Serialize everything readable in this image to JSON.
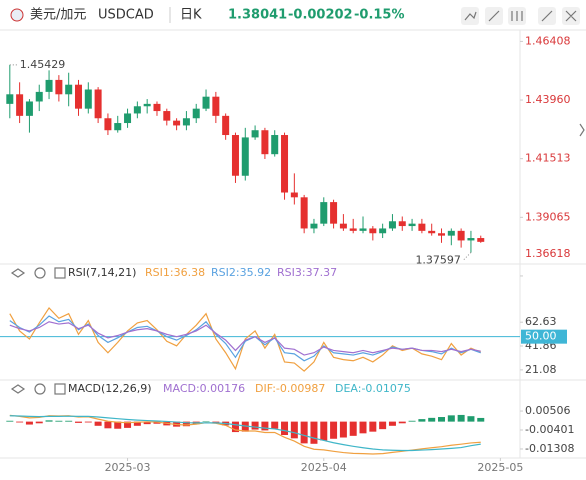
{
  "header": {
    "pair": "美元/加元",
    "symbol": "USDCAD",
    "period": "日K",
    "price": "1.38041",
    "change": "-0.00202",
    "change_pct": "-0.15%"
  },
  "chart_data": [
    {
      "type": "candlestick",
      "up_color": "#1f9c6e",
      "down_color": "#e5302f",
      "label_color": "#d9383a",
      "x": [
        0,
        1,
        2,
        3,
        4,
        5,
        6,
        7,
        8,
        9,
        10,
        11,
        12,
        13,
        14,
        15,
        16,
        17,
        18,
        19,
        20,
        21,
        22,
        23,
        24,
        25,
        26,
        27,
        28,
        29,
        30,
        31,
        32,
        33,
        34,
        35,
        36,
        37,
        38,
        39,
        40,
        41,
        42,
        43,
        44,
        45,
        46,
        47,
        48
      ],
      "open": [
        1.438,
        1.442,
        1.433,
        1.439,
        1.443,
        1.448,
        1.442,
        1.446,
        1.436,
        1.444,
        1.432,
        1.427,
        1.43,
        1.434,
        1.437,
        1.438,
        1.435,
        1.431,
        1.429,
        1.432,
        1.436,
        1.441,
        1.433,
        1.425,
        1.408,
        1.424,
        1.427,
        1.417,
        1.425,
        1.401,
        1.399,
        1.386,
        1.388,
        1.397,
        1.388,
        1.386,
        1.385,
        1.386,
        1.384,
        1.386,
        1.389,
        1.387,
        1.388,
        1.385,
        1.384,
        1.383,
        1.385,
        1.381,
        1.382
      ],
      "high": [
        1.45429,
        1.447,
        1.44,
        1.446,
        1.452,
        1.45,
        1.451,
        1.448,
        1.447,
        1.445,
        1.434,
        1.433,
        1.436,
        1.439,
        1.44,
        1.439,
        1.436,
        1.432,
        1.435,
        1.438,
        1.444,
        1.443,
        1.434,
        1.426,
        1.428,
        1.429,
        1.428,
        1.427,
        1.426,
        1.409,
        1.4,
        1.39,
        1.399,
        1.398,
        1.392,
        1.39,
        1.391,
        1.387,
        1.388,
        1.392,
        1.391,
        1.39,
        1.39,
        1.388,
        1.386,
        1.386,
        1.386,
        1.385,
        1.383
      ],
      "low": [
        1.432,
        1.43,
        1.426,
        1.435,
        1.44,
        1.439,
        1.437,
        1.433,
        1.434,
        1.43,
        1.425,
        1.426,
        1.428,
        1.432,
        1.434,
        1.433,
        1.429,
        1.427,
        1.427,
        1.43,
        1.435,
        1.43,
        1.423,
        1.405,
        1.406,
        1.423,
        1.415,
        1.416,
        1.398,
        1.396,
        1.384,
        1.384,
        1.387,
        1.386,
        1.385,
        1.384,
        1.384,
        1.381,
        1.382,
        1.385,
        1.385,
        1.385,
        1.384,
        1.383,
        1.38,
        1.379,
        1.378,
        1.37597,
        1.38
      ],
      "close": [
        1.442,
        1.433,
        1.439,
        1.443,
        1.448,
        1.442,
        1.446,
        1.436,
        1.444,
        1.432,
        1.427,
        1.43,
        1.434,
        1.437,
        1.438,
        1.435,
        1.431,
        1.429,
        1.432,
        1.436,
        1.441,
        1.433,
        1.425,
        1.408,
        1.424,
        1.427,
        1.417,
        1.425,
        1.401,
        1.399,
        1.386,
        1.388,
        1.397,
        1.388,
        1.386,
        1.385,
        1.386,
        1.384,
        1.386,
        1.389,
        1.387,
        1.388,
        1.385,
        1.384,
        1.383,
        1.385,
        1.381,
        1.382,
        1.38041
      ],
      "xlim": [
        -1,
        52
      ],
      "ylim": [
        1.372,
        1.468
      ],
      "yticks": [
        1.36618,
        1.39065,
        1.41513,
        {
          "value": 1.4396,
          "label": "1.43960"
        },
        1.46408
      ],
      "xticks": [
        {
          "value": 12,
          "label": "2025-03"
        },
        {
          "value": 32,
          "label": "2025-04"
        },
        {
          "value": 50,
          "label": "2025-05"
        }
      ],
      "annotations": [
        {
          "x": 0,
          "value": 1.45429
        },
        {
          "x": 47,
          "value": 1.37597
        }
      ]
    },
    {
      "type": "line",
      "title": "RSI(7,14,21)",
      "ylim": [
        14,
        95
      ],
      "yticks": [
        21.08,
        41.86,
        {
          "value": 50,
          "label": "50.00",
          "color": "#3fb6d6"
        },
        62.63
      ],
      "series": [
        {
          "name": "RSI1:36.38",
          "color": "#f0a040",
          "values": [
            70,
            55,
            48,
            62,
            75,
            66,
            70,
            52,
            64,
            45,
            36,
            45,
            55,
            62,
            64,
            56,
            46,
            42,
            52,
            60,
            70,
            48,
            36,
            22,
            48,
            55,
            40,
            52,
            28,
            27,
            20,
            28,
            45,
            32,
            30,
            29,
            32,
            28,
            34,
            42,
            38,
            40,
            35,
            33,
            30,
            44,
            34,
            40,
            36.38
          ]
        },
        {
          "name": "RSI2:35.92",
          "color": "#5aa2e0",
          "values": [
            64,
            58,
            54,
            60,
            68,
            63,
            65,
            56,
            61,
            51,
            45,
            49,
            54,
            58,
            59,
            55,
            50,
            47,
            51,
            56,
            63,
            52,
            44,
            32,
            46,
            50,
            43,
            49,
            36,
            35,
            29,
            33,
            42,
            36,
            35,
            34,
            36,
            34,
            37,
            41,
            39,
            40,
            38,
            37,
            35,
            40,
            36,
            39,
            35.92
          ]
        },
        {
          "name": "RSI3:37.37",
          "color": "#a070d0",
          "values": [
            60,
            57,
            55,
            58,
            63,
            61,
            62,
            57,
            60,
            53,
            49,
            51,
            54,
            56,
            57,
            55,
            52,
            50,
            52,
            55,
            60,
            53,
            47,
            38,
            47,
            50,
            45,
            49,
            40,
            39,
            34,
            36,
            41,
            38,
            37,
            36,
            38,
            36,
            38,
            40,
            39,
            40,
            38,
            38,
            37,
            39,
            37,
            39,
            37.37
          ]
        }
      ]
    },
    {
      "type": "macd",
      "title": "MACD(12,26,9)",
      "ylim": [
        -0.0174,
        0.0113
      ],
      "yticks": [
        -0.01308,
        -0.00401,
        0.00506
      ],
      "up_color": "#1f9c6e",
      "down_color": "#e5302f",
      "series": [
        {
          "name": "MACD:0.00176",
          "color": "#a070d0",
          "kind": "bar",
          "values": [
            0.0004,
            -0.0004,
            -0.0014,
            -0.0008,
            0.0006,
            0.0004,
            0.0004,
            -0.0006,
            -0.0004,
            -0.002,
            -0.0032,
            -0.0034,
            -0.003,
            -0.002,
            -0.0012,
            -0.001,
            -0.0018,
            -0.0024,
            -0.0022,
            -0.0012,
            0.0002,
            -0.0004,
            -0.0018,
            -0.005,
            -0.0048,
            -0.0038,
            -0.0042,
            -0.0034,
            -0.0064,
            -0.008,
            -0.0104,
            -0.0106,
            -0.009,
            -0.0082,
            -0.0076,
            -0.0068,
            -0.0056,
            -0.0048,
            -0.0036,
            -0.002,
            -0.0008,
            0.0004,
            0.0012,
            0.0018,
            0.0022,
            0.003,
            0.0032,
            0.0026,
            0.00176
          ]
        },
        {
          "name": "DIF:-0.00987",
          "color": "#f0a040",
          "kind": "line",
          "values": [
            0.003,
            0.0025,
            0.0018,
            0.002,
            0.0028,
            0.0027,
            0.0028,
            0.0022,
            0.0023,
            0.0012,
            0.0002,
            -0.0003,
            -0.0005,
            -0.0003,
            -0.0001,
            -0.0002,
            -0.0008,
            -0.0014,
            -0.0016,
            -0.0012,
            -0.0005,
            -0.0008,
            -0.0018,
            -0.004,
            -0.0045,
            -0.0045,
            -0.0052,
            -0.0052,
            -0.0075,
            -0.0093,
            -0.0118,
            -0.0132,
            -0.0135,
            -0.0142,
            -0.0148,
            -0.0152,
            -0.0153,
            -0.0155,
            -0.0153,
            -0.0147,
            -0.0142,
            -0.0136,
            -0.013,
            -0.0125,
            -0.012,
            -0.0113,
            -0.0108,
            -0.0102,
            -0.00987
          ]
        },
        {
          "name": "DEA:-0.01075",
          "color": "#3fb6c8",
          "kind": "line",
          "values": [
            0.0028,
            0.0027,
            0.0025,
            0.0024,
            0.0025,
            0.0025,
            0.0026,
            0.0025,
            0.0025,
            0.0022,
            0.0018,
            0.0014,
            0.001,
            0.0007,
            0.0005,
            0.0003,
            0.0001,
            -0.0002,
            -0.0005,
            -0.0006,
            -0.0006,
            -0.0006,
            -0.0009,
            -0.0015,
            -0.0021,
            -0.0026,
            -0.0031,
            -0.0035,
            -0.0043,
            -0.0053,
            -0.0066,
            -0.0079,
            -0.009,
            -0.0101,
            -0.011,
            -0.0118,
            -0.0125,
            -0.0131,
            -0.0135,
            -0.0137,
            -0.0138,
            -0.0138,
            -0.0136,
            -0.0134,
            -0.0131,
            -0.0128,
            -0.0124,
            -0.0115,
            -0.01075
          ]
        }
      ]
    }
  ]
}
